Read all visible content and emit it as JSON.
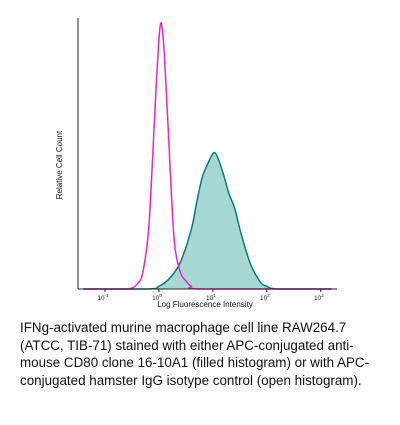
{
  "chart_data": {
    "type": "line",
    "xlabel": "Log Fluorescence Intensity",
    "ylabel": "Relative Cell Count",
    "x_scale": "log",
    "grid": false,
    "x_ticks": [
      {
        "base": "10",
        "exp": "-1",
        "value": -1
      },
      {
        "base": "10",
        "exp": "0",
        "value": 0
      },
      {
        "base": "10",
        "exp": "1",
        "value": 1
      },
      {
        "base": "10",
        "exp": "2",
        "value": 2
      },
      {
        "base": "10",
        "exp": "3",
        "value": 3
      }
    ],
    "xlim": [
      -1.5,
      3.3
    ],
    "ylim": [
      0,
      1.0
    ],
    "series": [
      {
        "style": "open",
        "color": "#ee22cc",
        "x": [
          -1.4,
          -0.6,
          -0.4,
          -0.3,
          -0.2,
          -0.15,
          -0.1,
          -0.05,
          0.0,
          0.03,
          0.06,
          0.1,
          0.15,
          0.2,
          0.25,
          0.3,
          0.4,
          0.5,
          0.6,
          0.8,
          3.2
        ],
        "y": [
          0.0,
          0.0,
          0.02,
          0.06,
          0.2,
          0.35,
          0.55,
          0.75,
          0.92,
          0.98,
          0.96,
          0.87,
          0.68,
          0.48,
          0.28,
          0.15,
          0.06,
          0.03,
          0.01,
          0.0,
          0.0
        ]
      },
      {
        "style": "filled",
        "color": "#107a78",
        "fill": "#a8d8d4",
        "x": [
          -1.4,
          -0.2,
          0.0,
          0.2,
          0.4,
          0.6,
          0.7,
          0.8,
          0.9,
          1.0,
          1.05,
          1.1,
          1.2,
          1.3,
          1.4,
          1.5,
          1.6,
          1.7,
          1.8,
          1.9,
          2.0,
          2.2,
          3.2
        ],
        "y": [
          0.0,
          0.0,
          0.01,
          0.04,
          0.1,
          0.22,
          0.32,
          0.41,
          0.46,
          0.5,
          0.5,
          0.48,
          0.42,
          0.35,
          0.3,
          0.22,
          0.15,
          0.09,
          0.05,
          0.02,
          0.01,
          0.0,
          0.0
        ]
      }
    ]
  },
  "caption": "IFNg-activated murine macrophage cell line RAW264.7 (ATCC, TIB-71) stained with either APC-conjugated anti-mouse CD80 clone 16-10A1 (filled histogram) or with APC-conjugated hamster IgG isotype control (open histogram)."
}
